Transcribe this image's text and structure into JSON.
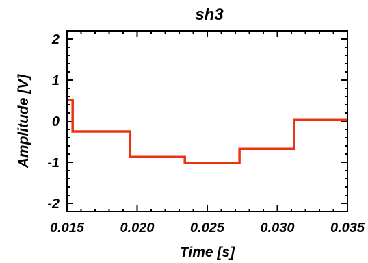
{
  "chart_data": {
    "type": "line",
    "step": true,
    "title": "sh3",
    "xlabel": "Time [s]",
    "ylabel": "Amplitude [V]",
    "xlim": [
      0.015,
      0.035
    ],
    "ylim": [
      -2.2,
      2.2
    ],
    "x_ticks": [
      0.015,
      0.02,
      0.025,
      0.03,
      0.035
    ],
    "x_tick_labels": [
      "0.015",
      "0.020",
      "0.025",
      "0.030",
      "0.035"
    ],
    "y_ticks": [
      -2,
      -1,
      0,
      1,
      2
    ],
    "y_tick_labels": [
      "-2",
      "-1",
      "0",
      "1",
      "2"
    ],
    "grid": false,
    "series": [
      {
        "color": "#ee3311",
        "x": [
          0.015,
          0.0154,
          0.0154,
          0.0195,
          0.0195,
          0.0234,
          0.0234,
          0.0273,
          0.0273,
          0.0312,
          0.0312,
          0.035
        ],
        "y": [
          0.52,
          0.52,
          -0.25,
          -0.25,
          -0.87,
          -0.87,
          -1.02,
          -1.02,
          -0.67,
          -0.67,
          0.03,
          0.03
        ]
      }
    ]
  }
}
